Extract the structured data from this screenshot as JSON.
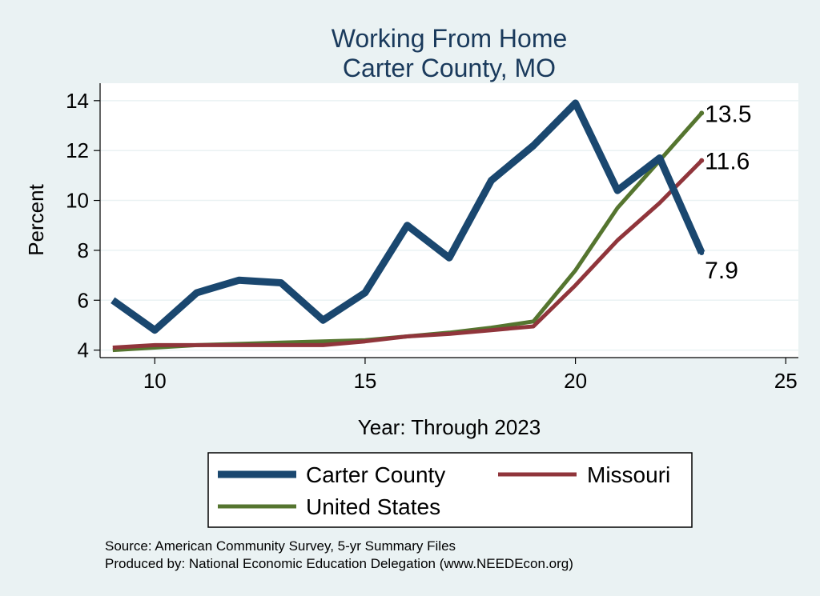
{
  "chart_data": {
    "type": "line",
    "title": "Working From Home",
    "subtitle": "Carter County, MO",
    "xlabel": "Year: Through 2023",
    "ylabel": "Percent",
    "xlim": [
      8.7,
      25.3
    ],
    "ylim": [
      3.7,
      14.7
    ],
    "x_ticks": [
      10,
      15,
      20,
      25
    ],
    "y_ticks": [
      4,
      6,
      8,
      10,
      12,
      14
    ],
    "grid": true,
    "legend_position": "bottom",
    "x": [
      9,
      10,
      11,
      12,
      13,
      14,
      15,
      16,
      17,
      18,
      19,
      20,
      21,
      22,
      23
    ],
    "series": [
      {
        "name": "Carter County",
        "color": "#1a476f",
        "values": [
          6.0,
          4.8,
          6.3,
          6.8,
          6.7,
          5.2,
          6.3,
          9.0,
          7.7,
          10.8,
          12.2,
          13.9,
          10.4,
          11.7,
          7.9
        ],
        "end_label": "7.9"
      },
      {
        "name": "Missouri",
        "color": "#90353b",
        "values": [
          4.1,
          4.2,
          4.2,
          4.2,
          4.2,
          4.2,
          4.35,
          4.55,
          4.65,
          4.8,
          4.95,
          6.6,
          8.4,
          9.9,
          11.6
        ],
        "end_label": "11.6"
      },
      {
        "name": "United States",
        "color": "#55752f",
        "values": [
          4.0,
          4.1,
          4.2,
          4.25,
          4.3,
          4.35,
          4.4,
          4.55,
          4.7,
          4.9,
          5.15,
          7.2,
          9.7,
          11.6,
          13.5
        ],
        "end_label": "13.5"
      }
    ]
  },
  "footer": {
    "source": "Source: American Community Survey, 5-yr Summary Files",
    "produced_by": "Produced by: National Economic Education Delegation (www.NEEDEcon.org)"
  }
}
